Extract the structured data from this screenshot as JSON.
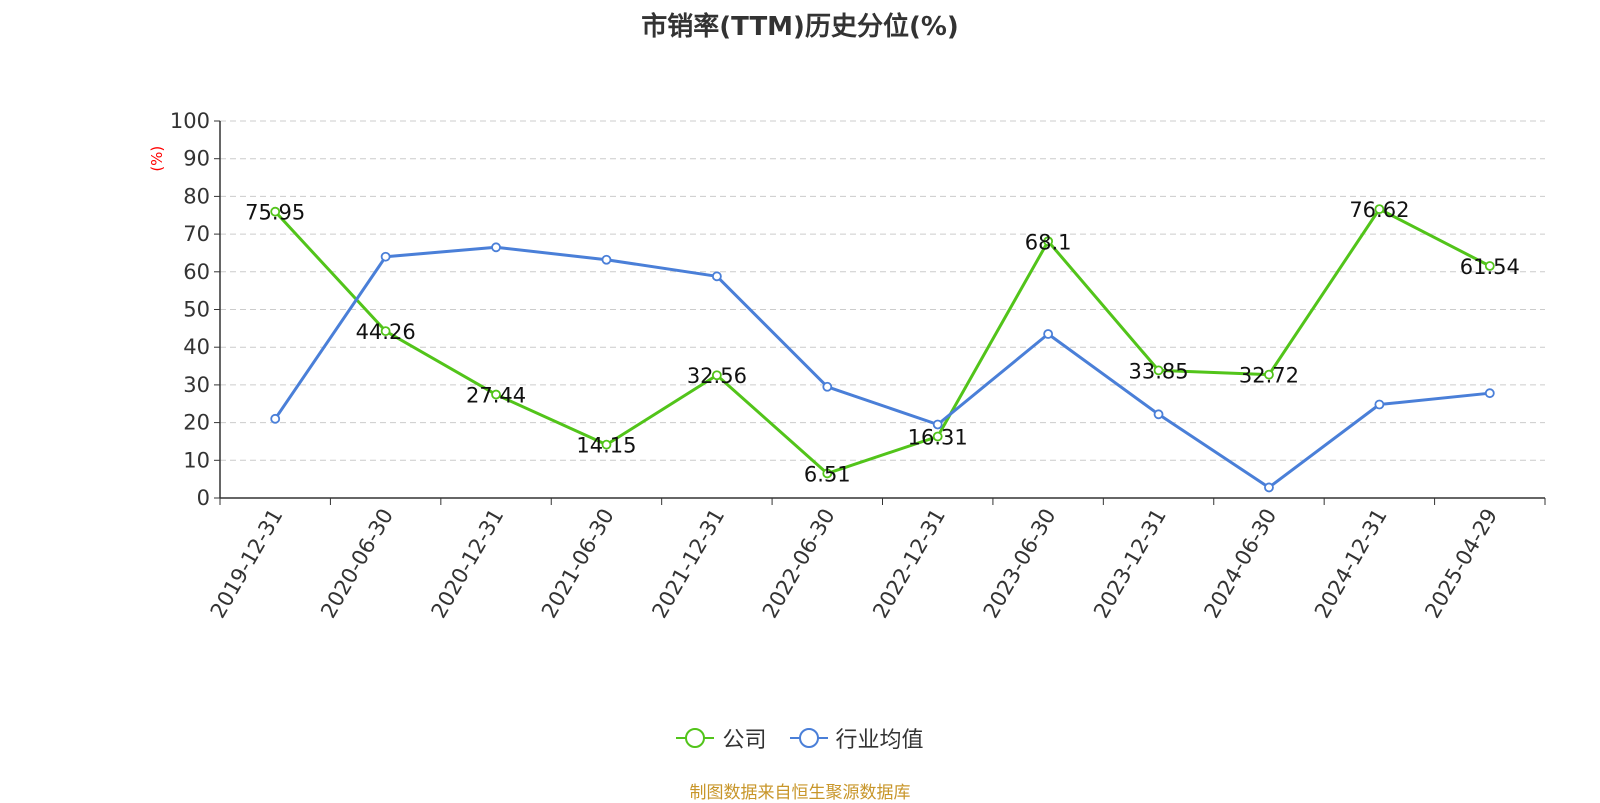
{
  "chart_data": {
    "type": "line",
    "title": "市销率(TTM)历史分位(%)",
    "ylabel": "(%)",
    "ylim": [
      0,
      100
    ],
    "yticks": [
      0,
      10,
      20,
      30,
      40,
      50,
      60,
      70,
      80,
      90,
      100
    ],
    "grid": true,
    "legend_position": "bottom",
    "categories": [
      "2019-12-31",
      "2020-06-30",
      "2020-12-31",
      "2021-06-30",
      "2021-12-31",
      "2022-06-30",
      "2022-12-31",
      "2023-06-30",
      "2023-12-31",
      "2024-06-30",
      "2024-12-31",
      "2025-04-29"
    ],
    "series": [
      {
        "name": "公司",
        "color": "#52c41a",
        "show_labels": true,
        "values": [
          75.95,
          44.26,
          27.44,
          14.15,
          32.56,
          6.51,
          16.31,
          68.1,
          33.85,
          32.72,
          76.62,
          61.54
        ]
      },
      {
        "name": "行业均值",
        "color": "#4a7fd8",
        "show_labels": false,
        "values": [
          21,
          64,
          66.5,
          63.2,
          58.8,
          29.5,
          19.5,
          43.5,
          22.2,
          2.8,
          24.8,
          27.8
        ]
      }
    ]
  },
  "source_note": "制图数据来自恒生聚源数据库"
}
